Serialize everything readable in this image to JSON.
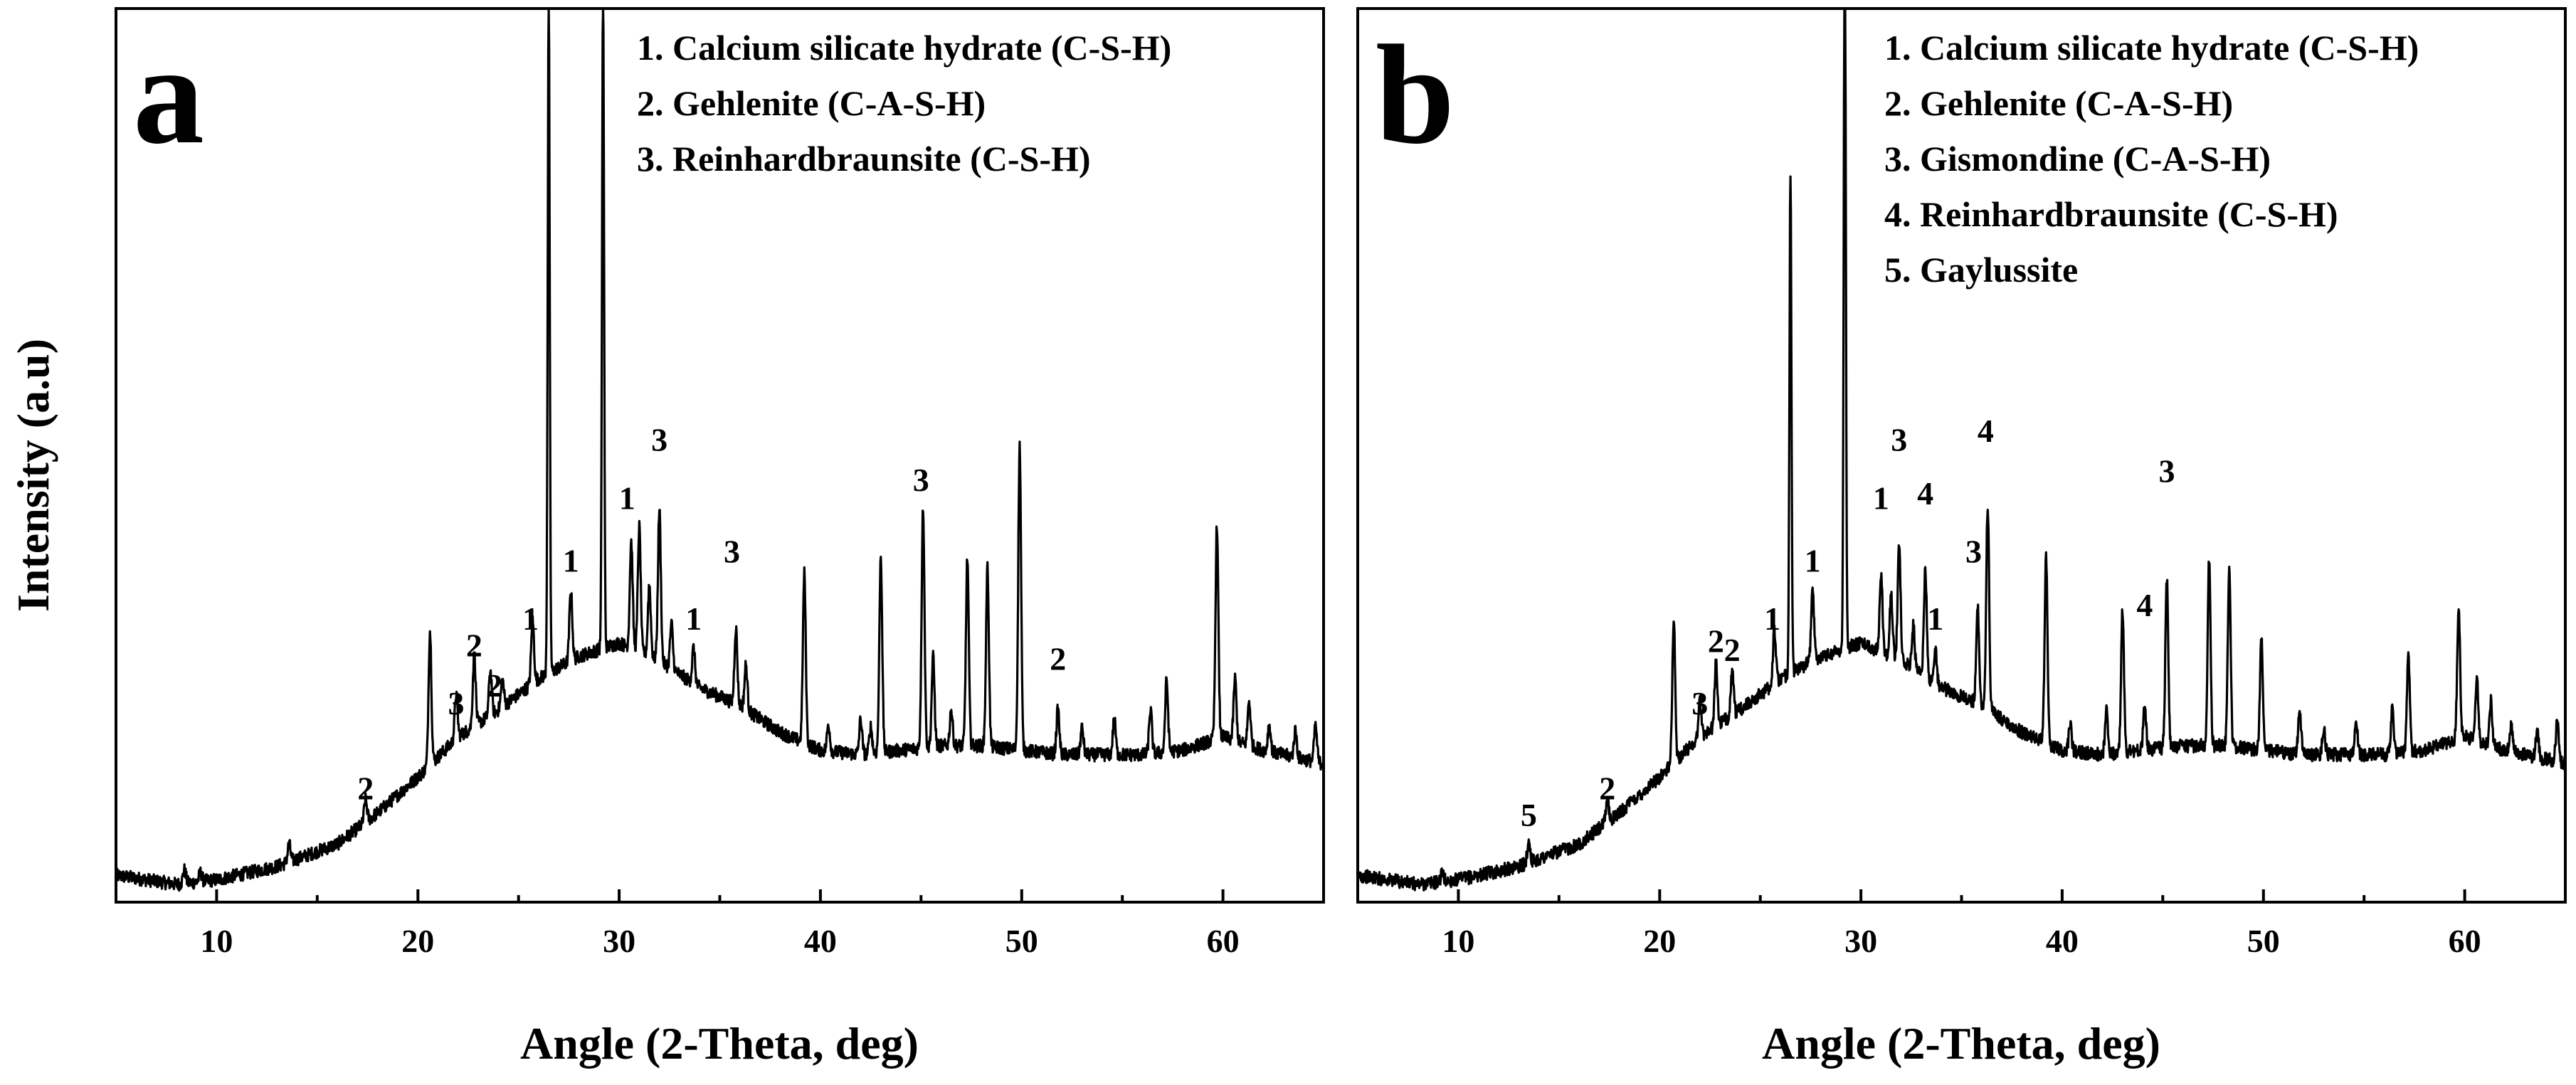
{
  "figure": {
    "ylabel": "Intensity (a.u)"
  },
  "chart_data": [
    {
      "type": "line",
      "panel_letter": "a",
      "xlabel": "Angle (2-Theta, deg)",
      "ylabel": "Intensity (a.u)",
      "xlim": [
        5,
        65
      ],
      "ylim": [
        0,
        100
      ],
      "xticks": [
        10,
        20,
        30,
        40,
        50,
        60
      ],
      "grid": false,
      "legend_position": "top-right",
      "legend": [
        "1. Calcium silicate hydrate (C-S-H)",
        "2. Gehlenite (C-A-S-H)",
        "3. Reinhardbraunsite (C-S-H)"
      ],
      "baseline": [
        [
          5,
          3.0
        ],
        [
          8,
          2.0
        ],
        [
          10,
          2.5
        ],
        [
          13,
          4.0
        ],
        [
          16,
          6.5
        ],
        [
          18,
          10.0
        ],
        [
          20,
          14.0
        ],
        [
          22,
          18.5
        ],
        [
          24,
          21.5
        ],
        [
          26,
          25.0
        ],
        [
          28,
          27.5
        ],
        [
          30,
          29.0
        ],
        [
          32,
          27.0
        ],
        [
          34,
          24.0
        ],
        [
          36,
          22.0
        ],
        [
          38,
          19.0
        ],
        [
          40,
          17.0
        ],
        [
          42,
          16.5
        ],
        [
          44,
          17.0
        ],
        [
          46,
          17.5
        ],
        [
          48,
          17.5
        ],
        [
          50,
          17.0
        ],
        [
          52,
          16.5
        ],
        [
          54,
          16.5
        ],
        [
          56,
          16.5
        ],
        [
          58,
          17.0
        ],
        [
          60,
          18.5
        ],
        [
          62,
          17.0
        ],
        [
          65,
          15.5
        ]
      ],
      "peaks": [
        [
          8.4,
          1.5
        ],
        [
          9.2,
          1.0
        ],
        [
          13.6,
          2.0
        ],
        [
          17.4,
          2.5
        ],
        [
          20.6,
          15.0
        ],
        [
          21.9,
          5.0
        ],
        [
          22.8,
          8.0
        ],
        [
          23.6,
          5.0
        ],
        [
          24.2,
          3.0
        ],
        [
          25.7,
          7.0
        ],
        [
          26.5,
          75.0
        ],
        [
          27.6,
          8.0
        ],
        [
          29.2,
          75.0
        ],
        [
          30.6,
          12.0
        ],
        [
          31.0,
          14.0
        ],
        [
          31.5,
          8.0
        ],
        [
          32.0,
          17.0
        ],
        [
          32.6,
          5.0
        ],
        [
          33.7,
          4.0
        ],
        [
          35.8,
          8.5
        ],
        [
          36.3,
          5.0
        ],
        [
          39.2,
          19.0
        ],
        [
          40.4,
          3.0
        ],
        [
          42.0,
          4.0
        ],
        [
          42.5,
          3.0
        ],
        [
          43.0,
          22.0
        ],
        [
          45.1,
          27.0
        ],
        [
          45.6,
          10.0
        ],
        [
          46.5,
          4.0
        ],
        [
          47.3,
          21.0
        ],
        [
          48.3,
          20.0
        ],
        [
          49.9,
          34.0
        ],
        [
          51.8,
          5.0
        ],
        [
          53.0,
          3.0
        ],
        [
          54.6,
          4.0
        ],
        [
          56.4,
          5.0
        ],
        [
          57.2,
          8.0
        ],
        [
          59.7,
          24.0
        ],
        [
          60.6,
          7.0
        ],
        [
          61.3,
          5.0
        ],
        [
          62.3,
          3.0
        ],
        [
          63.6,
          3.0
        ],
        [
          64.6,
          4.0
        ]
      ],
      "annotations": [
        {
          "label": "2",
          "x": 17.4,
          "y": 11.5
        },
        {
          "label": "3",
          "x": 21.9,
          "y": 21.0
        },
        {
          "label": "2",
          "x": 22.8,
          "y": 27.5
        },
        {
          "label": "2",
          "x": 23.8,
          "y": 23.0
        },
        {
          "label": "1",
          "x": 25.6,
          "y": 30.5
        },
        {
          "label": "1",
          "x": 27.6,
          "y": 37.0
        },
        {
          "label": "1",
          "x": 30.4,
          "y": 44.0
        },
        {
          "label": "3",
          "x": 32.0,
          "y": 50.5
        },
        {
          "label": "1",
          "x": 33.7,
          "y": 30.5
        },
        {
          "label": "3",
          "x": 35.6,
          "y": 38.0
        },
        {
          "label": "3",
          "x": 45.0,
          "y": 46.0
        },
        {
          "label": "2",
          "x": 51.8,
          "y": 26.0
        }
      ]
    },
    {
      "type": "line",
      "panel_letter": "b",
      "xlabel": "Angle (2-Theta, deg)",
      "ylabel": "",
      "xlim": [
        5,
        65
      ],
      "ylim": [
        0,
        100
      ],
      "xticks": [
        10,
        20,
        30,
        40,
        50,
        60
      ],
      "grid": false,
      "legend_position": "top-right",
      "legend": [
        "1. Calcium silicate hydrate (C-S-H)",
        "2. Gehlenite (C-A-S-H)",
        "3. Gismondine (C-A-S-H)",
        "4. Reinhardbraunsite (C-S-H)",
        "5. Gaylussite"
      ],
      "baseline": [
        [
          5,
          3.0
        ],
        [
          8,
          2.0
        ],
        [
          10,
          2.5
        ],
        [
          13,
          4.0
        ],
        [
          16,
          6.5
        ],
        [
          18,
          10.0
        ],
        [
          20,
          14.0
        ],
        [
          22,
          18.5
        ],
        [
          24,
          21.5
        ],
        [
          26,
          25.0
        ],
        [
          28,
          27.5
        ],
        [
          30,
          29.0
        ],
        [
          32,
          27.0
        ],
        [
          34,
          24.0
        ],
        [
          36,
          22.0
        ],
        [
          38,
          19.0
        ],
        [
          40,
          17.0
        ],
        [
          42,
          16.5
        ],
        [
          44,
          17.0
        ],
        [
          46,
          17.5
        ],
        [
          48,
          17.5
        ],
        [
          50,
          17.0
        ],
        [
          52,
          16.5
        ],
        [
          54,
          16.5
        ],
        [
          56,
          16.5
        ],
        [
          58,
          17.0
        ],
        [
          60,
          18.5
        ],
        [
          62,
          17.0
        ],
        [
          65,
          15.5
        ]
      ],
      "peaks": [
        [
          9.2,
          1.0
        ],
        [
          13.5,
          2.5
        ],
        [
          17.4,
          2.5
        ],
        [
          20.7,
          16.0
        ],
        [
          22.0,
          4.0
        ],
        [
          22.8,
          7.0
        ],
        [
          23.6,
          5.0
        ],
        [
          25.7,
          6.0
        ],
        [
          26.5,
          56.0
        ],
        [
          27.6,
          8.0
        ],
        [
          29.2,
          85.0
        ],
        [
          31.0,
          9.0
        ],
        [
          31.5,
          7.0
        ],
        [
          31.9,
          13.0
        ],
        [
          32.6,
          5.0
        ],
        [
          33.2,
          12.0
        ],
        [
          33.7,
          4.0
        ],
        [
          35.8,
          11.0
        ],
        [
          36.3,
          23.0
        ],
        [
          39.2,
          21.0
        ],
        [
          40.4,
          3.0
        ],
        [
          42.2,
          5.0
        ],
        [
          43.0,
          16.0
        ],
        [
          44.1,
          5.0
        ],
        [
          45.2,
          19.0
        ],
        [
          47.3,
          21.0
        ],
        [
          48.3,
          20.0
        ],
        [
          49.9,
          13.0
        ],
        [
          51.8,
          5.0
        ],
        [
          53.0,
          3.0
        ],
        [
          54.6,
          4.0
        ],
        [
          56.4,
          5.0
        ],
        [
          57.2,
          11.0
        ],
        [
          59.7,
          15.0
        ],
        [
          60.6,
          7.0
        ],
        [
          61.3,
          5.0
        ],
        [
          62.3,
          3.0
        ],
        [
          63.6,
          3.0
        ],
        [
          64.6,
          5.0
        ]
      ],
      "annotations": [
        {
          "label": "5",
          "x": 13.5,
          "y": 8.5
        },
        {
          "label": "2",
          "x": 17.4,
          "y": 11.5
        },
        {
          "label": "3",
          "x": 22.0,
          "y": 21.0
        },
        {
          "label": "2",
          "x": 22.8,
          "y": 28.0
        },
        {
          "label": "2",
          "x": 23.6,
          "y": 27.0
        },
        {
          "label": "1",
          "x": 25.6,
          "y": 30.5
        },
        {
          "label": "1",
          "x": 27.6,
          "y": 37.0
        },
        {
          "label": "1",
          "x": 31.0,
          "y": 44.0
        },
        {
          "label": "3",
          "x": 31.9,
          "y": 50.5
        },
        {
          "label": "4",
          "x": 33.2,
          "y": 44.5
        },
        {
          "label": "1",
          "x": 33.7,
          "y": 30.5
        },
        {
          "label": "3",
          "x": 35.6,
          "y": 38.0
        },
        {
          "label": "4",
          "x": 36.2,
          "y": 51.5
        },
        {
          "label": "4",
          "x": 44.1,
          "y": 32.0
        },
        {
          "label": "3",
          "x": 45.2,
          "y": 47.0
        }
      ]
    }
  ]
}
